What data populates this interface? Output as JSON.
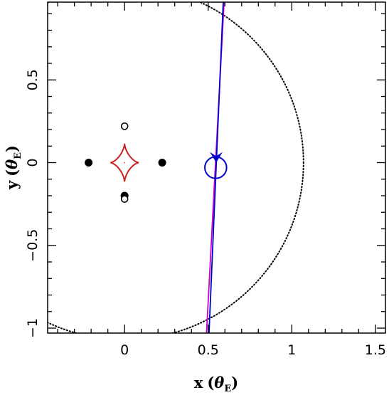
{
  "chart_data": {
    "type": "scatter",
    "title": "",
    "xlabel": {
      "main": "x",
      "symbol": "θ",
      "sub": "E"
    },
    "ylabel": {
      "main": "y",
      "symbol": "θ",
      "sub": "E"
    },
    "xlim": [
      -0.46,
      1.56
    ],
    "ylim": [
      -1.03,
      0.97
    ],
    "x_ticks": [
      {
        "value": 0,
        "label": "0"
      },
      {
        "value": 0.5,
        "label": "0.5"
      },
      {
        "value": 1,
        "label": "1"
      },
      {
        "value": 1.5,
        "label": "1.5"
      }
    ],
    "y_ticks": [
      {
        "value": -1,
        "label": "−1"
      },
      {
        "value": -0.5,
        "label": "−0.5"
      },
      {
        "value": 0,
        "label": "0"
      },
      {
        "value": 0.5,
        "label": "0.5"
      }
    ],
    "einstein_ring": {
      "cx": 0,
      "cy": 0,
      "r": 1.07,
      "color": "#000000",
      "style": "dotted"
    },
    "caustic": {
      "type": "astroid",
      "cx": 0,
      "cy": 0,
      "rx": 0.085,
      "ry": 0.115,
      "color": "#cc2222"
    },
    "filled_images": [
      {
        "x": -0.215,
        "y": 0.0
      },
      {
        "x": 0.225,
        "y": 0.0
      },
      {
        "x": 0.0,
        "y": -0.2
      }
    ],
    "open_images": [
      {
        "x": 0.0,
        "y": 0.22
      },
      {
        "x": 0.0,
        "y": -0.22
      }
    ],
    "trajectories": [
      {
        "name": "",
        "color": "#cc00cc",
        "points": [
          [
            0.49,
            -1.03
          ],
          [
            0.595,
            0.97
          ]
        ]
      },
      {
        "name": "",
        "color": "#0000cc",
        "points": [
          [
            0.505,
            -1.03
          ],
          [
            0.59,
            0.97
          ]
        ]
      }
    ],
    "source": {
      "x": 0.545,
      "y": -0.03,
      "r": 0.065,
      "color": "#0000cc"
    },
    "arrow": {
      "x": 0.548,
      "y": 0.0,
      "direction": "down",
      "color": "#0000cc"
    }
  }
}
